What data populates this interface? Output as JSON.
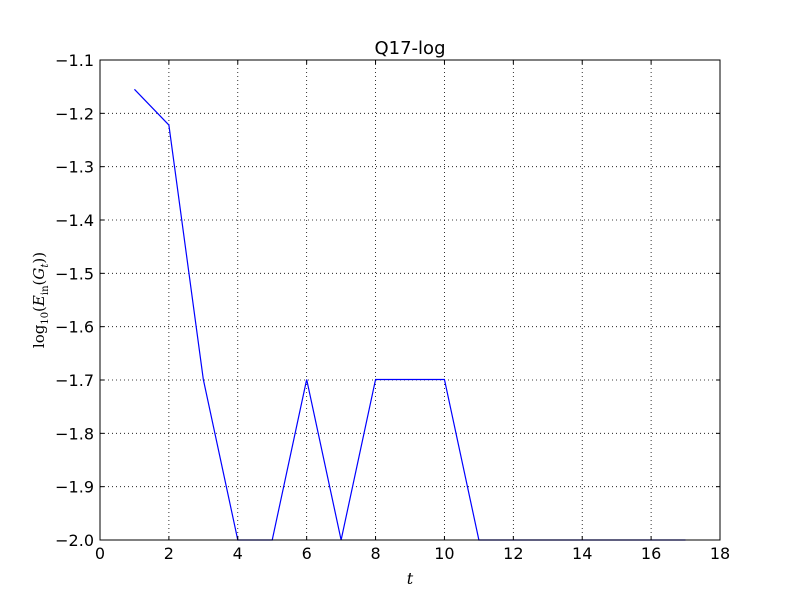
{
  "chart_data": {
    "type": "line",
    "title": "Q17-log",
    "xlabel": "t",
    "ylabel": {
      "prefix": "log",
      "subscript": "10",
      "open": "(",
      "e": "E",
      "e_sub": "in",
      "inner_open": "(",
      "g": "G",
      "g_sub": "t",
      "close": "))"
    },
    "xlim": [
      0,
      18
    ],
    "ylim": [
      -2.0,
      -1.1
    ],
    "xticks": [
      0,
      2,
      4,
      6,
      8,
      10,
      12,
      14,
      16,
      18
    ],
    "yticks": [
      -1.1,
      -1.2,
      -1.3,
      -1.4,
      -1.5,
      -1.6,
      -1.7,
      -1.8,
      -1.9,
      -2.0
    ],
    "xtick_labels": [
      "0",
      "2",
      "4",
      "6",
      "8",
      "10",
      "12",
      "14",
      "16",
      "18"
    ],
    "ytick_labels": [
      "−1.1",
      "−1.2",
      "−1.3",
      "−1.4",
      "−1.5",
      "−1.6",
      "−1.7",
      "−1.8",
      "−1.9",
      "−2.0"
    ],
    "grid": true,
    "series": [
      {
        "color": "#0000ff",
        "x": [
          1,
          2,
          3,
          4,
          5,
          6,
          7,
          8,
          9,
          10,
          11,
          12,
          13,
          14,
          15,
          16,
          17
        ],
        "y": [
          -1.155,
          -1.222,
          -1.699,
          -2.0,
          -2.0,
          -1.699,
          -2.0,
          -1.699,
          -1.699,
          -1.699,
          -2.0,
          -2.0,
          -2.0,
          -2.0,
          -2.0,
          -2.0,
          -2.0
        ]
      }
    ]
  }
}
